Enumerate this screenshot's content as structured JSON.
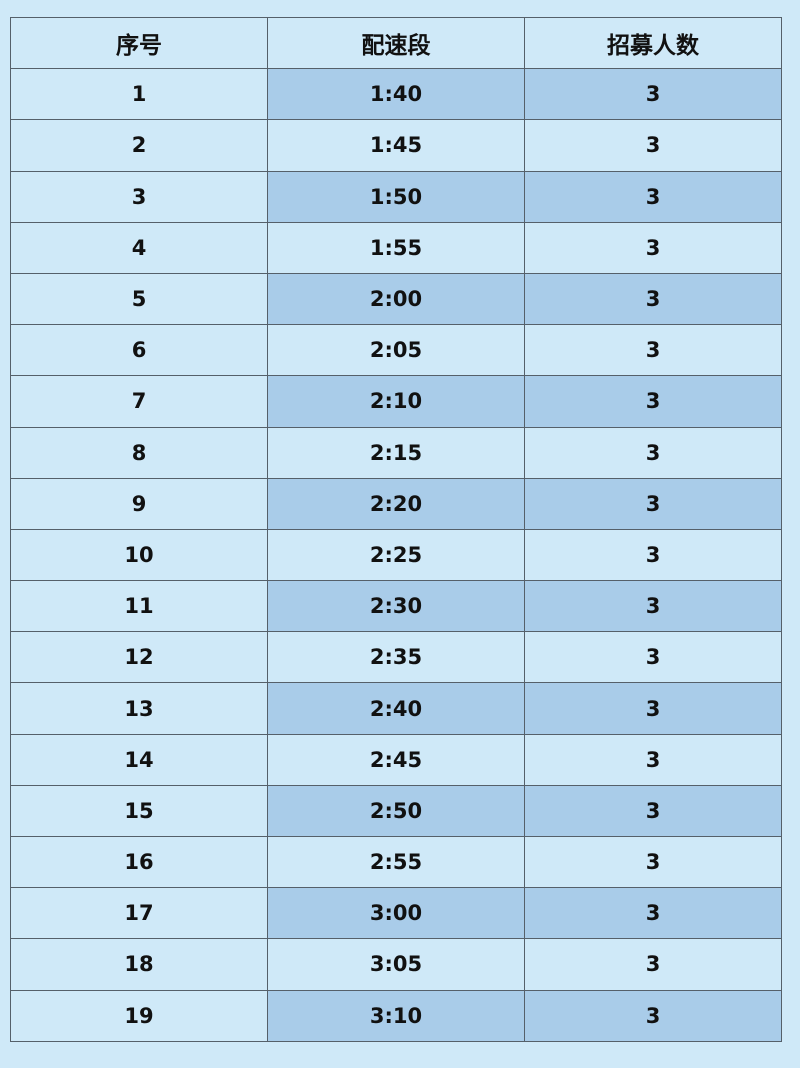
{
  "table": {
    "headers": [
      "序号",
      "配速段",
      "招募人数"
    ],
    "rows": [
      [
        "1",
        "1:40",
        "3"
      ],
      [
        "2",
        "1:45",
        "3"
      ],
      [
        "3",
        "1:50",
        "3"
      ],
      [
        "4",
        "1:55",
        "3"
      ],
      [
        "5",
        "2:00",
        "3"
      ],
      [
        "6",
        "2:05",
        "3"
      ],
      [
        "7",
        "2:10",
        "3"
      ],
      [
        "8",
        "2:15",
        "3"
      ],
      [
        "9",
        "2:20",
        "3"
      ],
      [
        "10",
        "2:25",
        "3"
      ],
      [
        "11",
        "2:30",
        "3"
      ],
      [
        "12",
        "2:35",
        "3"
      ],
      [
        "13",
        "2:40",
        "3"
      ],
      [
        "14",
        "2:45",
        "3"
      ],
      [
        "15",
        "2:50",
        "3"
      ],
      [
        "16",
        "2:55",
        "3"
      ],
      [
        "17",
        "3:00",
        "3"
      ],
      [
        "18",
        "3:05",
        "3"
      ],
      [
        "19",
        "3:10",
        "3"
      ]
    ]
  },
  "colors": {
    "background": "#cfe9f8",
    "highlight": "#a9cce9",
    "border": "#55606a"
  }
}
